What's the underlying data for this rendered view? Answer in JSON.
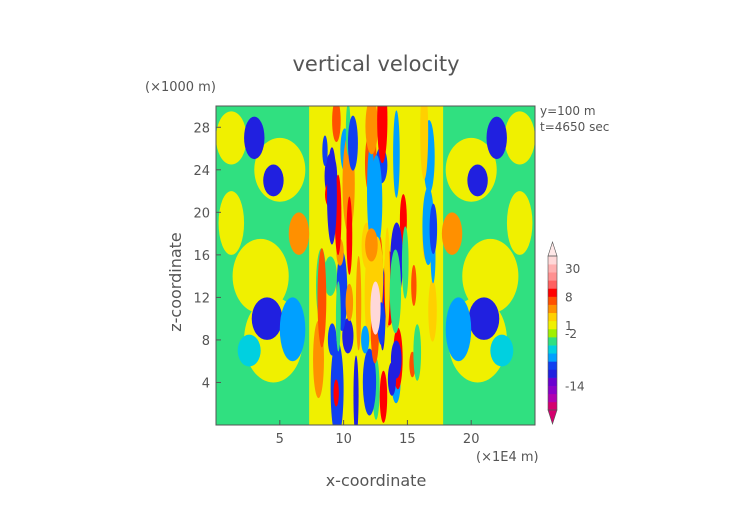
{
  "chart_data": {
    "type": "heatmap",
    "title": "vertical velocity",
    "xlabel": "x-coordinate",
    "ylabel": "z-coordinate",
    "x_unit": "(×1E4 m)",
    "y_unit": "(×1000 m)",
    "annotations": [
      "y=100 m",
      "t=4650 sec"
    ],
    "xlim": [
      0,
      25
    ],
    "ylim": [
      0,
      30
    ],
    "x_ticks": [
      5,
      10,
      15,
      20
    ],
    "y_ticks": [
      4,
      8,
      12,
      16,
      20,
      24,
      28
    ],
    "colorbar": {
      "labeled_levels": [
        30,
        8,
        1,
        -2,
        -14
      ],
      "colors": [
        "#d4006e",
        "#b000b0",
        "#8a00c8",
        "#6a00d0",
        "#2020e0",
        "#1040f0",
        "#00a0ff",
        "#00d0e0",
        "#30e080",
        "#a0f000",
        "#f0f000",
        "#ffd000",
        "#ff9000",
        "#ff5000",
        "#ff0000",
        "#ff6060",
        "#ff9090",
        "#ffb0b0",
        "#ffd8d8"
      ]
    }
  }
}
